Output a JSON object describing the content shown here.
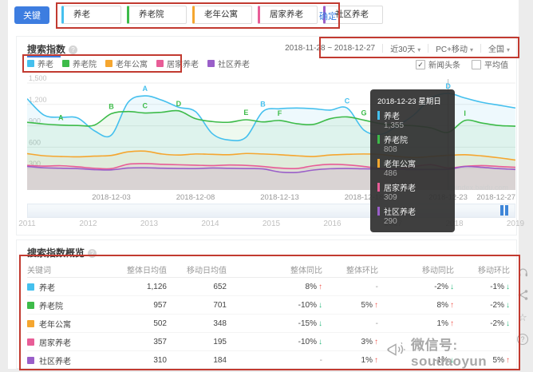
{
  "page": {
    "keyword_button": "关键词",
    "confirm_label": "确定",
    "keywords": [
      {
        "name": "养老",
        "color": "#45c0ee"
      },
      {
        "name": "养老院",
        "color": "#3dbb49"
      },
      {
        "name": "老年公寓",
        "color": "#f5a62f"
      },
      {
        "name": "居家养老",
        "color": "#e85d97"
      },
      {
        "name": "社区养老",
        "color": "#9a5fc9"
      }
    ],
    "annotation_color": "#c23a30"
  },
  "trend_section": {
    "title": "搜索指数",
    "date_range": "2018-11-28 ~ 2018-12-27",
    "range_select": "近30天",
    "platform_select": "PC+移动",
    "region_select": "全国",
    "checkbox_news": "新闻头条",
    "checkbox_news_checked": "✓",
    "checkbox_avg": "平均值",
    "watermark": "@index.baidu.com"
  },
  "chart_data": {
    "type": "line",
    "title": "搜索指数",
    "x_range": [
      "2018-11-28",
      "2018-12-27"
    ],
    "n_points": 30,
    "x_tick_labels": [
      {
        "index": 5,
        "label": "2018-12-03"
      },
      {
        "index": 10,
        "label": "2018-12-08"
      },
      {
        "index": 15,
        "label": "2018-12-13"
      },
      {
        "index": 20,
        "label": "2018-12-18"
      },
      {
        "index": 25,
        "label": "2018-12-23"
      },
      {
        "index": 29,
        "label": "2018-12-27"
      }
    ],
    "y_ticks": [
      300,
      600,
      900,
      1200,
      1500
    ],
    "ylim": [
      0,
      1500
    ],
    "grid": true,
    "legend_position": "top-left",
    "hover_index": 25,
    "series": [
      {
        "name": "养老",
        "color": "#45c0ee",
        "values": [
          1280,
          1050,
          1020,
          1010,
          830,
          770,
          1230,
          1320,
          1260,
          1160,
          1100,
          790,
          700,
          740,
          1100,
          1140,
          1150,
          1140,
          1120,
          1150,
          840,
          780,
          900,
          1060,
          1290,
          1355,
          1290,
          1230,
          1190,
          1150
        ]
      },
      {
        "name": "养老院",
        "color": "#3dbb49",
        "values": [
          950,
          925,
          910,
          905,
          910,
          1070,
          1100,
          1080,
          1090,
          1110,
          1000,
          960,
          950,
          985,
          955,
          975,
          930,
          920,
          1000,
          1025,
          980,
          930,
          910,
          900,
          870,
          808,
          975,
          940,
          905,
          895
        ]
      },
      {
        "name": "老年公寓",
        "color": "#f5a62f",
        "values": [
          510,
          480,
          470,
          465,
          475,
          485,
          535,
          545,
          505,
          490,
          505,
          500,
          495,
          512,
          505,
          495,
          480,
          470,
          490,
          500,
          505,
          498,
          470,
          455,
          470,
          486,
          495,
          478,
          452,
          420
        ]
      },
      {
        "name": "居家养老",
        "color": "#e85d97",
        "values": [
          345,
          335,
          340,
          325,
          305,
          300,
          362,
          370,
          360,
          354,
          348,
          342,
          350,
          345,
          330,
          308,
          302,
          340,
          360,
          352,
          330,
          302,
          296,
          330,
          355,
          309,
          332,
          342,
          330,
          318
        ]
      },
      {
        "name": "社区养老",
        "color": "#9a5fc9",
        "values": [
          330,
          312,
          306,
          300,
          285,
          282,
          308,
          312,
          306,
          302,
          300,
          308,
          304,
          300,
          296,
          252,
          246,
          280,
          298,
          302,
          297,
          293,
          290,
          286,
          288,
          290,
          328,
          318,
          300,
          288
        ]
      }
    ],
    "news_markers": [
      {
        "series": 0,
        "index": 7,
        "letter": "A"
      },
      {
        "series": 0,
        "index": 14,
        "letter": "B"
      },
      {
        "series": 0,
        "index": 19,
        "letter": "C"
      },
      {
        "series": 0,
        "index": 25,
        "letter": "D"
      },
      {
        "series": 1,
        "index": 2,
        "letter": "A"
      },
      {
        "series": 1,
        "index": 5,
        "letter": "B"
      },
      {
        "series": 1,
        "index": 7,
        "letter": "C"
      },
      {
        "series": 1,
        "index": 9,
        "letter": "D"
      },
      {
        "series": 1,
        "index": 13,
        "letter": "E"
      },
      {
        "series": 1,
        "index": 15,
        "letter": "F"
      },
      {
        "series": 1,
        "index": 20,
        "letter": "G"
      },
      {
        "series": 1,
        "index": 26,
        "letter": "I"
      }
    ]
  },
  "tooltip": {
    "date": "2018-12-23 星期日",
    "items": [
      {
        "name": "养老",
        "value": "1,355"
      },
      {
        "name": "养老院",
        "value": "808"
      },
      {
        "name": "老年公寓",
        "value": "486"
      },
      {
        "name": "居家养老",
        "value": "309"
      },
      {
        "name": "社区养老",
        "value": "290"
      }
    ]
  },
  "timeline": {
    "years": [
      "2011",
      "2012",
      "2013",
      "2014",
      "2015",
      "2016",
      "2017",
      "2018",
      "2019"
    ]
  },
  "table_section": {
    "title": "搜索指数概览",
    "columns": [
      "关键词",
      "整体日均值",
      "移动日均值",
      "整体同比",
      "整体环比",
      "移动同比",
      "移动环比"
    ],
    "rows": [
      {
        "keyword": "养老",
        "overall_avg": "1,126",
        "mobile_avg": "652",
        "overall_yoy": {
          "text": "8%",
          "dir": "up"
        },
        "overall_mom": {
          "text": "-",
          "dir": "none"
        },
        "mobile_yoy": {
          "text": "-2%",
          "dir": "down"
        },
        "mobile_mom": {
          "text": "-1%",
          "dir": "down"
        }
      },
      {
        "keyword": "养老院",
        "overall_avg": "957",
        "mobile_avg": "701",
        "overall_yoy": {
          "text": "-10%",
          "dir": "down"
        },
        "overall_mom": {
          "text": "5%",
          "dir": "up"
        },
        "mobile_yoy": {
          "text": "8%",
          "dir": "up"
        },
        "mobile_mom": {
          "text": "-2%",
          "dir": "down"
        }
      },
      {
        "keyword": "老年公寓",
        "overall_avg": "502",
        "mobile_avg": "348",
        "overall_yoy": {
          "text": "-15%",
          "dir": "down"
        },
        "overall_mom": {
          "text": "-",
          "dir": "none"
        },
        "mobile_yoy": {
          "text": "1%",
          "dir": "up"
        },
        "mobile_mom": {
          "text": "-2%",
          "dir": "down"
        }
      },
      {
        "keyword": "居家养老",
        "overall_avg": "357",
        "mobile_avg": "195",
        "overall_yoy": {
          "text": "-10%",
          "dir": "down"
        },
        "overall_mom": {
          "text": "3%",
          "dir": "up"
        },
        "mobile_yoy": {
          "text": "",
          "dir": "none"
        },
        "mobile_mom": {
          "text": "",
          "dir": "none"
        }
      },
      {
        "keyword": "社区养老",
        "overall_avg": "310",
        "mobile_avg": "184",
        "overall_yoy": {
          "text": "-",
          "dir": "none"
        },
        "overall_mom": {
          "text": "1%",
          "dir": "up"
        },
        "mobile_yoy": {
          "text": "-1%",
          "dir": "down"
        },
        "mobile_mom": {
          "text": "5%",
          "dir": "up"
        }
      }
    ]
  },
  "side_toolbar": {
    "icons": [
      "headset",
      "share",
      "star",
      "help"
    ]
  },
  "overlay": {
    "wechat_text": "微信号: soudaoyun"
  }
}
